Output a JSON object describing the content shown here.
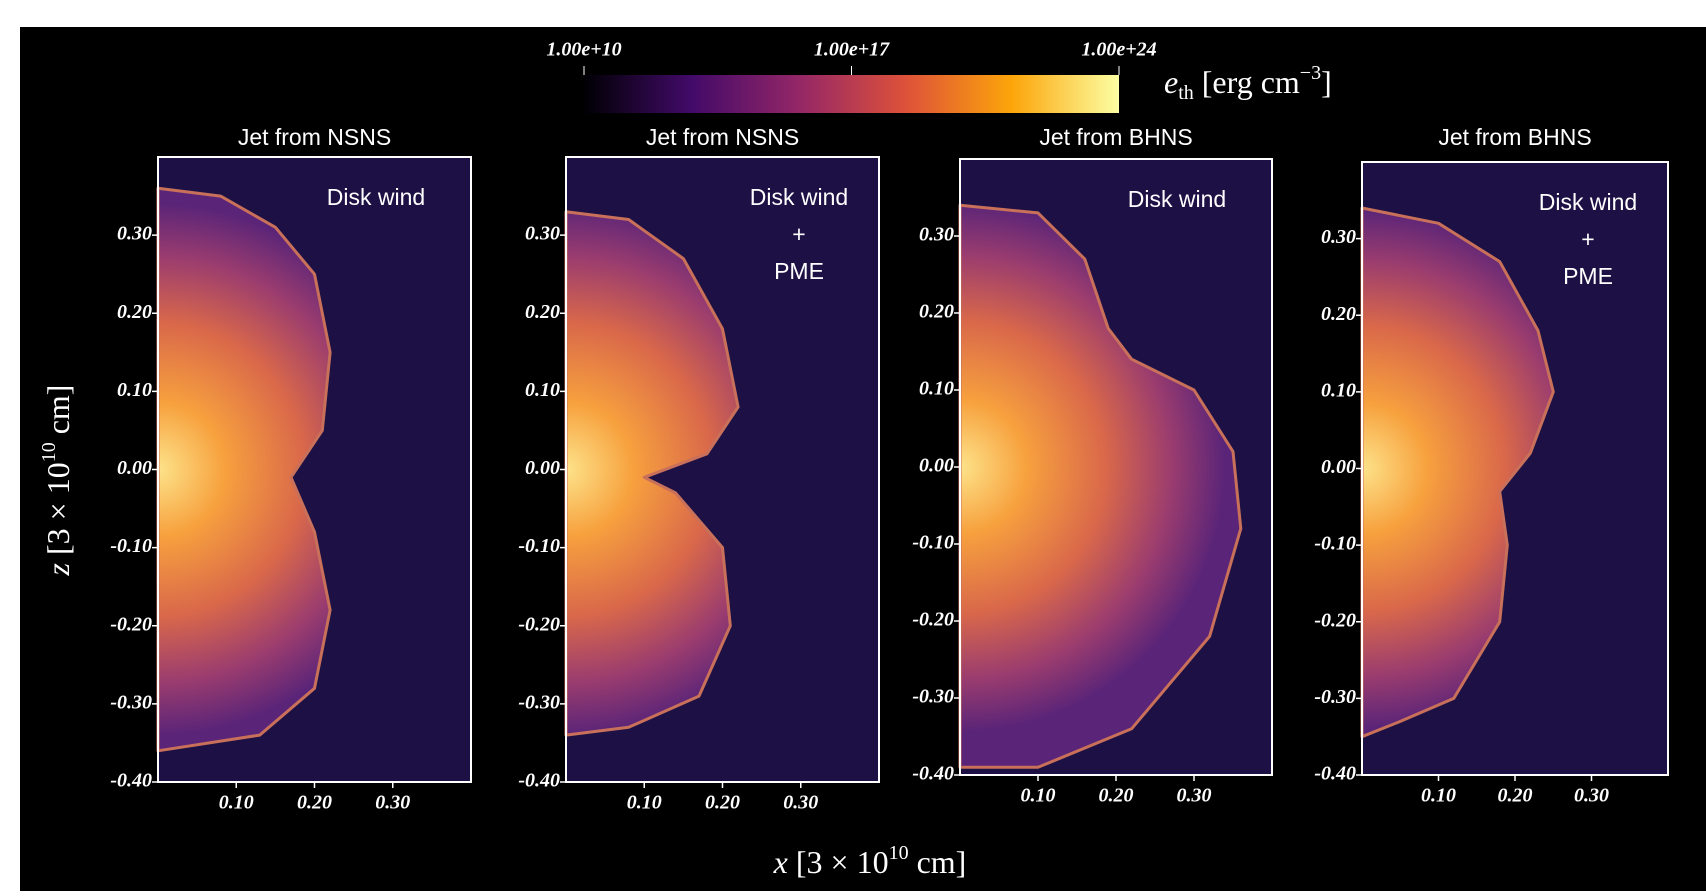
{
  "figure": {
    "y_label": {
      "var": "z",
      "pre": " [3 × 10",
      "sup": "10",
      "post": " cm]"
    },
    "x_label": {
      "var": "x",
      "pre": " [3 × 10",
      "sup": "10",
      "post": " cm]"
    },
    "colorbar": {
      "scale": "log",
      "lim": [
        10000000000.0,
        1e+24
      ],
      "colors": [
        "#000004",
        "#420a68",
        "#932667",
        "#dd513a",
        "#fca50a",
        "#fcffa4"
      ],
      "ticks": [
        {
          "value": 10000000000.0,
          "label": "1.00e+10"
        },
        {
          "value": 1e+17,
          "label": "1.00e+17"
        },
        {
          "value": 1e+24,
          "label": "1.00e+24"
        }
      ],
      "label": {
        "var": "e",
        "sub": "th",
        "pre": " [erg cm",
        "sup": "−3",
        "post": "]"
      }
    }
  },
  "chart_data": [
    {
      "type": "image",
      "title": "Jet from NSNS",
      "annotations": [
        "Disk wind"
      ],
      "xlim": [
        0,
        0.4
      ],
      "ylim": [
        -0.4,
        0.4
      ],
      "xticks": [
        {
          "value": 0.1,
          "label": "0.10"
        },
        {
          "value": 0.2,
          "label": "0.20"
        },
        {
          "value": 0.3,
          "label": "0.30"
        }
      ],
      "yticks": [
        {
          "value": -0.4,
          "label": "-0.40"
        },
        {
          "value": -0.3,
          "label": "-0.30"
        },
        {
          "value": -0.2,
          "label": "-0.20"
        },
        {
          "value": -0.1,
          "label": "-0.10"
        },
        {
          "value": 0,
          "label": "0.00"
        },
        {
          "value": 0.1,
          "label": "0.10"
        },
        {
          "value": 0.2,
          "label": "0.20"
        },
        {
          "value": 0.3,
          "label": "0.30"
        }
      ]
    },
    {
      "type": "image",
      "title": "Jet from NSNS",
      "annotations": [
        "Disk wind",
        "+",
        "PME"
      ],
      "xlim": [
        0,
        0.4
      ],
      "ylim": [
        -0.4,
        0.4
      ],
      "xticks": [
        {
          "value": 0.1,
          "label": "0.10"
        },
        {
          "value": 0.2,
          "label": "0.20"
        },
        {
          "value": 0.3,
          "label": "0.30"
        }
      ],
      "yticks": [
        {
          "value": -0.4,
          "label": "-0.40"
        },
        {
          "value": -0.3,
          "label": "-0.30"
        },
        {
          "value": -0.2,
          "label": "-0.20"
        },
        {
          "value": -0.1,
          "label": "-0.10"
        },
        {
          "value": 0,
          "label": "0.00"
        },
        {
          "value": 0.1,
          "label": "0.10"
        },
        {
          "value": 0.2,
          "label": "0.20"
        },
        {
          "value": 0.3,
          "label": "0.30"
        }
      ]
    },
    {
      "type": "image",
      "title": "Jet from BHNS",
      "annotations": [
        "Disk wind"
      ],
      "xlim": [
        0,
        0.4
      ],
      "ylim": [
        -0.4,
        0.4
      ],
      "xticks": [
        {
          "value": 0.1,
          "label": "0.10"
        },
        {
          "value": 0.2,
          "label": "0.20"
        },
        {
          "value": 0.3,
          "label": "0.30"
        }
      ],
      "yticks": [
        {
          "value": -0.4,
          "label": "-0.40"
        },
        {
          "value": -0.3,
          "label": "-0.30"
        },
        {
          "value": -0.2,
          "label": "-0.20"
        },
        {
          "value": -0.1,
          "label": "-0.10"
        },
        {
          "value": 0,
          "label": "0.00"
        },
        {
          "value": 0.1,
          "label": "0.10"
        },
        {
          "value": 0.2,
          "label": "0.20"
        },
        {
          "value": 0.3,
          "label": "0.30"
        }
      ]
    },
    {
      "type": "image",
      "title": "Jet from BHNS",
      "annotations": [
        "Disk wind",
        "+",
        "PME"
      ],
      "xlim": [
        0,
        0.4
      ],
      "ylim": [
        -0.4,
        0.4
      ],
      "xticks": [
        {
          "value": 0.1,
          "label": "0.10"
        },
        {
          "value": 0.2,
          "label": "0.20"
        },
        {
          "value": 0.3,
          "label": "0.30"
        }
      ],
      "yticks": [
        {
          "value": -0.4,
          "label": "-0.40"
        },
        {
          "value": -0.3,
          "label": "-0.30"
        },
        {
          "value": -0.2,
          "label": "-0.20"
        },
        {
          "value": -0.1,
          "label": "-0.10"
        },
        {
          "value": 0,
          "label": "0.00"
        },
        {
          "value": 0.1,
          "label": "0.10"
        },
        {
          "value": 0.2,
          "label": "0.20"
        },
        {
          "value": 0.3,
          "label": "0.30"
        }
      ]
    }
  ]
}
